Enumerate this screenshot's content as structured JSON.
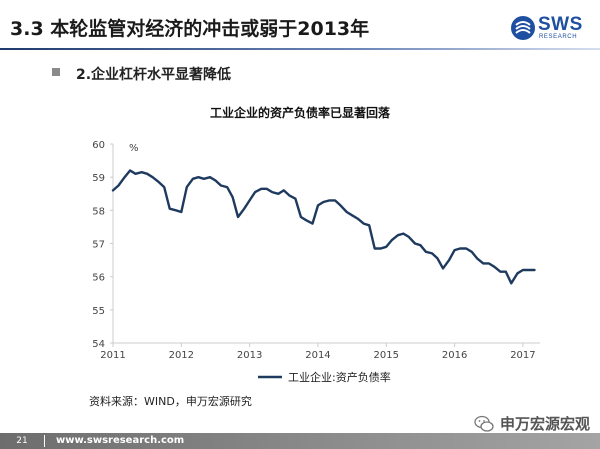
{
  "slide": {
    "title": "3.3 本轮监管对经济的冲击或弱于2013年",
    "bullet": "2.企业杠杆水平显著降低"
  },
  "logo": {
    "text": "SWS",
    "sub": "RESEARCH"
  },
  "source": "资料来源：WIND，申万宏源研究",
  "watermark": "申万宏源宏观",
  "footer": {
    "page": "21",
    "url": "www.swsresearch.com"
  },
  "colors": {
    "line": "#1f3a5f",
    "axis": "#cccccc",
    "title_rule": "#1f3a6e",
    "footer": "#8a8a8a"
  },
  "chart_data": {
    "type": "line",
    "title": "工业企业的资产负债率已显著回落",
    "unit_label": "%",
    "ylim": [
      54,
      60
    ],
    "yticks": [
      54,
      55,
      56,
      57,
      58,
      59,
      60
    ],
    "xlim": [
      2011,
      2017.25
    ],
    "xticks": [
      2011,
      2012,
      2013,
      2014,
      2015,
      2016,
      2017
    ],
    "grid": false,
    "legend_position": "bottom",
    "series": [
      {
        "name": "工业企业:资产负债率",
        "x": [
          2011.0,
          2011.08,
          2011.17,
          2011.25,
          2011.33,
          2011.42,
          2011.5,
          2011.58,
          2011.67,
          2011.75,
          2011.83,
          2011.92,
          2012.0,
          2012.08,
          2012.17,
          2012.25,
          2012.33,
          2012.42,
          2012.5,
          2012.58,
          2012.67,
          2012.75,
          2012.83,
          2012.92,
          2013.0,
          2013.08,
          2013.17,
          2013.25,
          2013.33,
          2013.42,
          2013.5,
          2013.58,
          2013.67,
          2013.75,
          2013.83,
          2013.92,
          2014.0,
          2014.08,
          2014.17,
          2014.25,
          2014.33,
          2014.42,
          2014.5,
          2014.58,
          2014.67,
          2014.75,
          2014.83,
          2014.92,
          2015.0,
          2015.08,
          2015.17,
          2015.25,
          2015.33,
          2015.42,
          2015.5,
          2015.58,
          2015.67,
          2015.75,
          2015.83,
          2015.92,
          2016.0,
          2016.08,
          2016.17,
          2016.25,
          2016.33,
          2016.42,
          2016.5,
          2016.58,
          2016.67,
          2016.75,
          2016.83,
          2016.92,
          2017.0,
          2017.08,
          2017.17
        ],
        "values": [
          58.6,
          58.75,
          59.0,
          59.2,
          59.1,
          59.15,
          59.1,
          59.0,
          58.85,
          58.7,
          58.05,
          58.0,
          57.95,
          58.7,
          58.95,
          59.0,
          58.95,
          59.0,
          58.9,
          58.75,
          58.7,
          58.4,
          57.8,
          58.05,
          58.3,
          58.55,
          58.65,
          58.65,
          58.55,
          58.5,
          58.6,
          58.45,
          58.35,
          57.8,
          57.7,
          57.6,
          58.15,
          58.25,
          58.3,
          58.3,
          58.15,
          57.95,
          57.85,
          57.75,
          57.6,
          57.55,
          56.85,
          56.85,
          56.9,
          57.1,
          57.25,
          57.3,
          57.2,
          57.0,
          56.95,
          56.75,
          56.7,
          56.55,
          56.25,
          56.5,
          56.8,
          56.85,
          56.85,
          56.75,
          56.55,
          56.4,
          56.4,
          56.3,
          56.15,
          56.15,
          55.8,
          56.1,
          56.2,
          56.2,
          56.2
        ]
      }
    ]
  }
}
